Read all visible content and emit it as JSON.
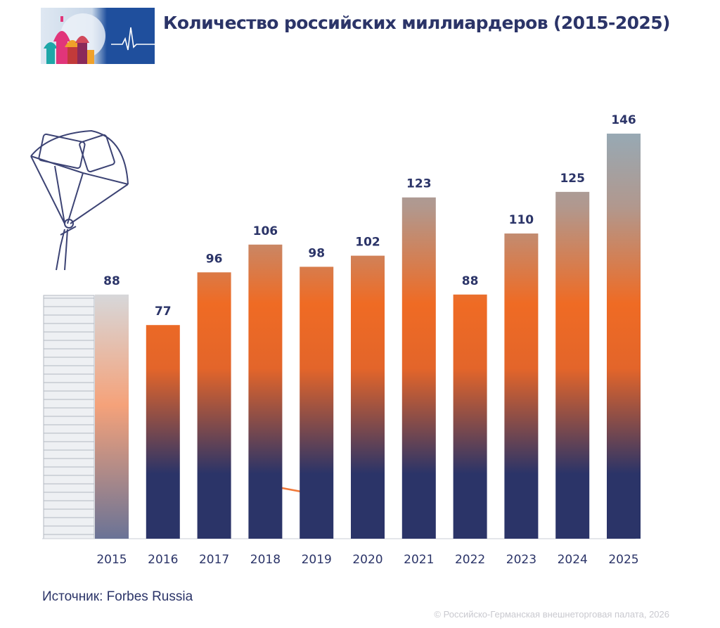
{
  "header": {
    "title": "Количество российских миллиардеров (2015-2025)"
  },
  "footer": {
    "source": "Источник: Forbes Russia",
    "copyright": "© Российско-Германская внешнеторговая палата, 2026"
  },
  "colors": {
    "bar_top": "#97a9b4",
    "bar_mid": "#ef6b24",
    "bar_bottom": "#2b3468",
    "text": "#2b3468",
    "logo_blue": "#1f4f9d"
  },
  "icons": [
    "money-parachute-icon",
    "coin-stack-icon",
    "skyscrapers-icon",
    "businessman-icon",
    "growth-arrow-icon",
    "cathedral-logo-icon"
  ],
  "chart_data": {
    "type": "bar",
    "title": "Количество российских миллиардеров (2015-2025)",
    "xlabel": "",
    "ylabel": "",
    "categories": [
      "2015",
      "2016",
      "2017",
      "2018",
      "2019",
      "2020",
      "2021",
      "2022",
      "2023",
      "2024",
      "2025"
    ],
    "values": [
      88,
      77,
      96,
      106,
      98,
      102,
      123,
      88,
      110,
      125,
      146
    ],
    "data_labels": [
      "88",
      "77",
      "96",
      "106",
      "98",
      "102",
      "123",
      "88",
      "110",
      "125",
      "146"
    ],
    "ylim": [
      0,
      146
    ],
    "grid": false,
    "legend": "none"
  }
}
